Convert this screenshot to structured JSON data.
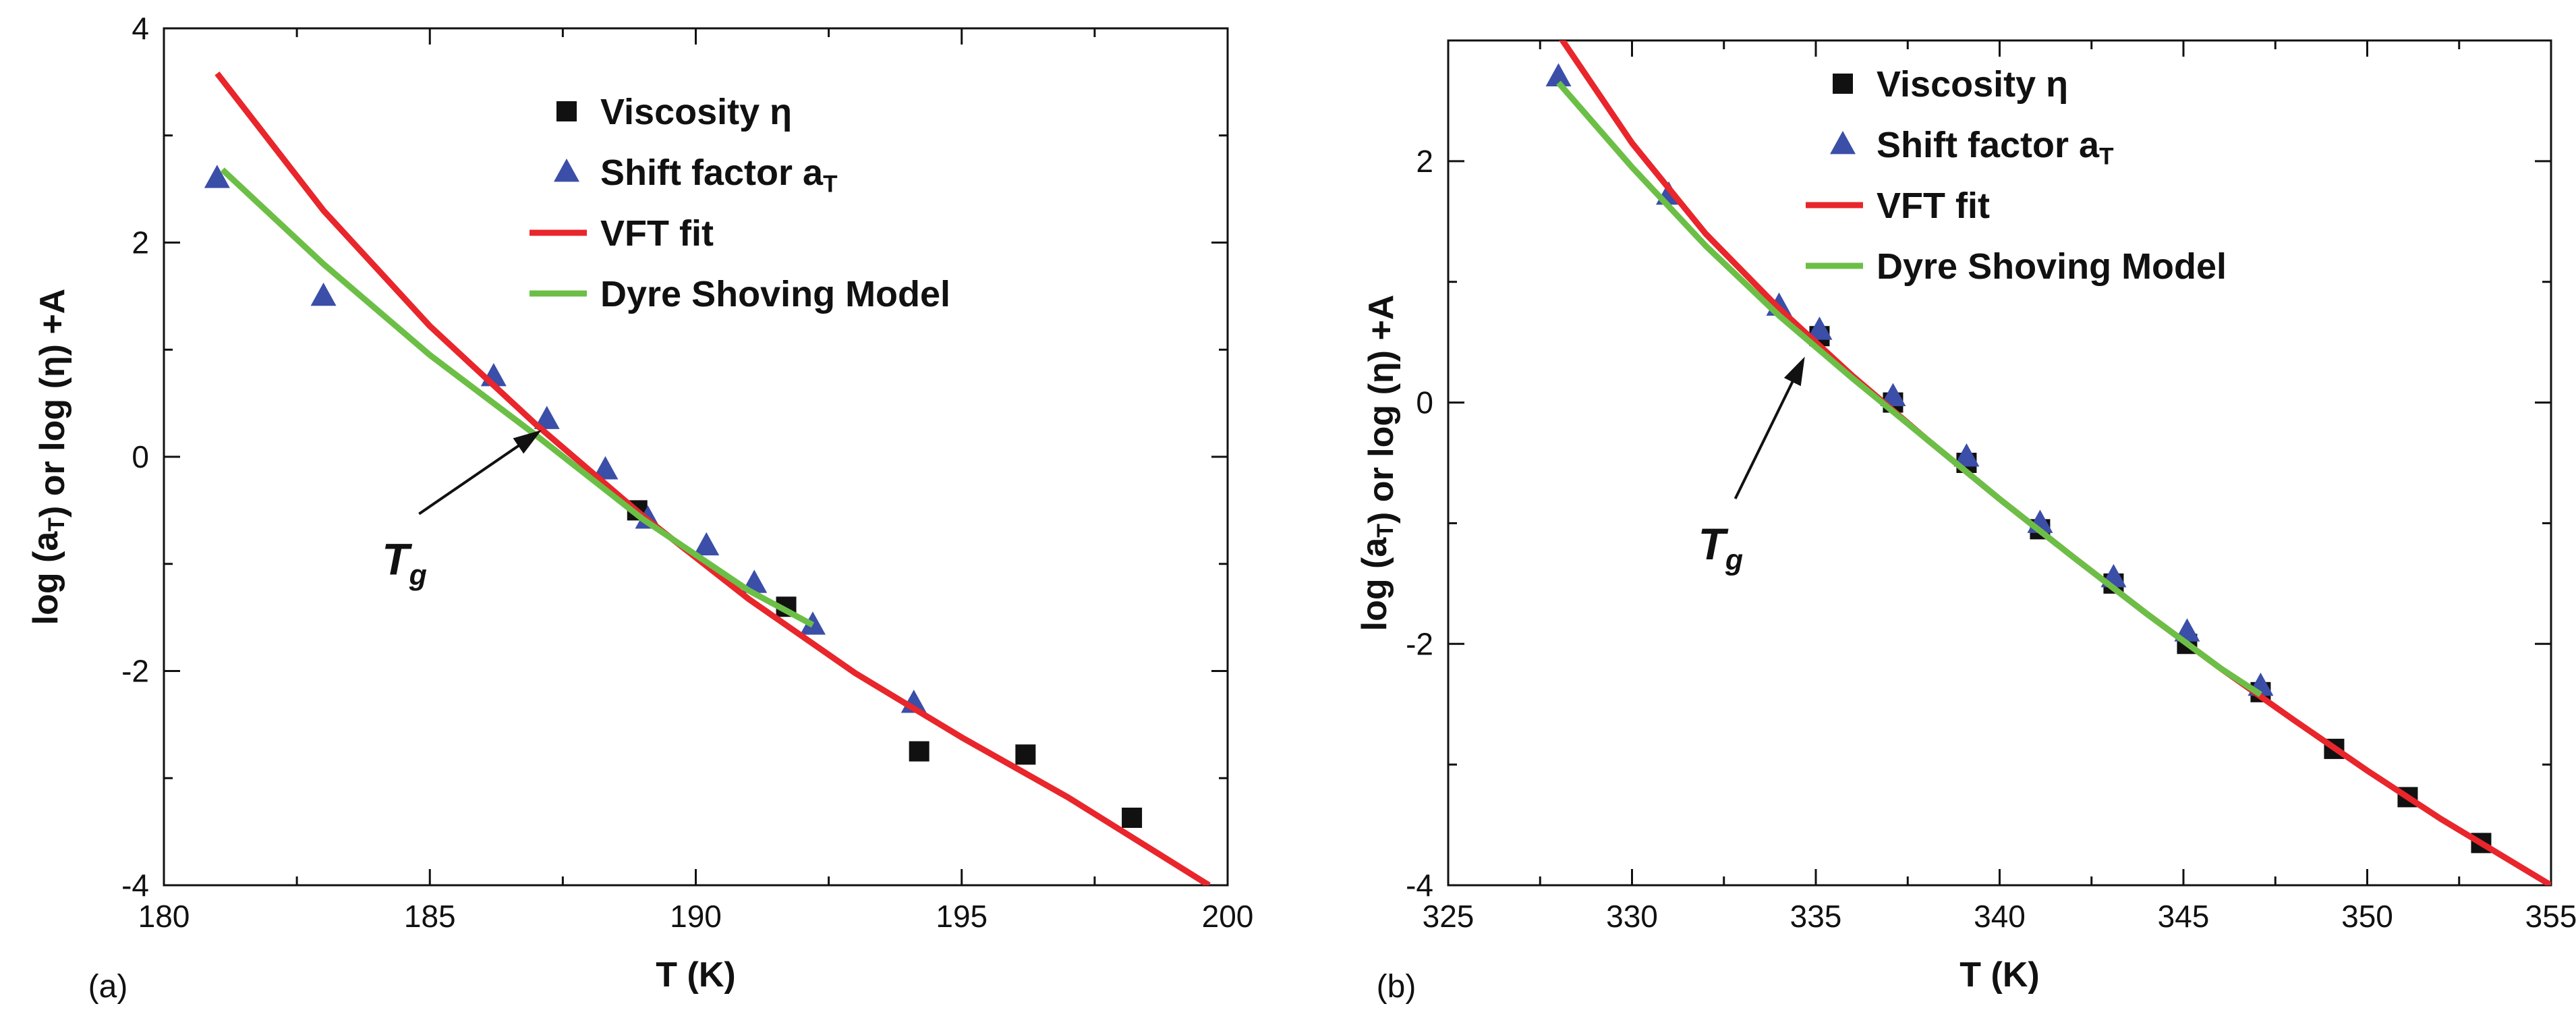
{
  "chart_data": [
    {
      "type": "scatter",
      "panel_label": "(a)",
      "xlabel": "T (K)",
      "ylabel": "log (aT) or log (η) +A",
      "xlim": [
        180,
        200
      ],
      "ylim": [
        -4,
        4
      ],
      "xticks": [
        180,
        185,
        190,
        195,
        200
      ],
      "yticks": [
        -4,
        -2,
        0,
        2,
        4
      ],
      "grid": false,
      "legend_position": "top-right",
      "annotation": {
        "text": "T",
        "subscript": "g",
        "arrow_to": [
          187.1,
          0.25
        ],
        "label_at": [
          184.1,
          -1.1
        ]
      },
      "series": [
        {
          "name": "Viscosity η",
          "marker": "square",
          "color": "#111111",
          "x": [
            188.9,
            191.7,
            194.2,
            196.2,
            198.2
          ],
          "y": [
            -0.5,
            -1.4,
            -2.75,
            -2.78,
            -3.37
          ]
        },
        {
          "name": "Shift factor aT",
          "marker": "triangle",
          "color": "#3b4ea8",
          "x": [
            181.0,
            183.0,
            186.2,
            187.2,
            188.3,
            189.1,
            190.2,
            191.1,
            192.2,
            194.1
          ],
          "y": [
            2.6,
            1.5,
            0.75,
            0.35,
            -0.12,
            -0.58,
            -0.83,
            -1.18,
            -1.57,
            -2.3
          ]
        },
        {
          "name": "VFT fit",
          "line": true,
          "color": "#e8262b",
          "x": [
            181.0,
            183.0,
            185.0,
            187.0,
            189.0,
            191.0,
            193.0,
            195.0,
            197.0,
            199.65
          ],
          "y": [
            3.58,
            2.3,
            1.22,
            0.3,
            -0.55,
            -1.33,
            -2.02,
            -2.62,
            -3.18,
            -4.0
          ]
        },
        {
          "name": "Dyre Shoving Model",
          "line": true,
          "color": "#6cbf46",
          "x": [
            181.1,
            183.0,
            185.0,
            187.0,
            189.0,
            191.0,
            192.2
          ],
          "y": [
            2.68,
            1.8,
            0.95,
            0.2,
            -0.58,
            -1.25,
            -1.57
          ]
        }
      ]
    },
    {
      "type": "scatter",
      "panel_label": "(b)",
      "xlabel": "T (K)",
      "ylabel": "log (aT) or log (η) +A",
      "xlim": [
        325,
        355
      ],
      "ylim": [
        -4,
        3
      ],
      "xticks": [
        325,
        330,
        335,
        340,
        345,
        350,
        355
      ],
      "yticks": [
        -4,
        -2,
        0,
        2
      ],
      "grid": false,
      "legend_position": "top-right",
      "annotation": {
        "text": "T",
        "subscript": "g",
        "arrow_to": [
          334.7,
          0.38
        ],
        "label_at": [
          331.8,
          -1.3
        ]
      },
      "series": [
        {
          "name": "Viscosity η",
          "marker": "square",
          "color": "#111111",
          "x": [
            335.1,
            337.1,
            339.1,
            341.1,
            343.1,
            345.1,
            347.1,
            349.1,
            351.1,
            353.1
          ],
          "y": [
            0.55,
            0.0,
            -0.5,
            -1.05,
            -1.5,
            -2.0,
            -2.4,
            -2.87,
            -3.27,
            -3.65
          ]
        },
        {
          "name": "Shift factor aT",
          "marker": "triangle",
          "color": "#3b4ea8",
          "x": [
            328.0,
            331.0,
            334.0,
            335.1,
            337.1,
            339.1,
            341.1,
            343.1,
            345.1,
            347.1
          ],
          "y": [
            2.7,
            1.72,
            0.8,
            0.6,
            0.05,
            -0.45,
            -1.0,
            -1.45,
            -1.9,
            -2.35
          ]
        },
        {
          "name": "VFT fit",
          "line": true,
          "color": "#e8262b",
          "x": [
            328.0,
            330.0,
            332.0,
            334.0,
            336.0,
            338.0,
            340.0,
            342.0,
            344.0,
            346.0,
            348.0,
            350.0,
            352.0,
            355.0
          ],
          "y": [
            3.05,
            2.15,
            1.4,
            0.78,
            0.22,
            -0.3,
            -0.8,
            -1.28,
            -1.75,
            -2.2,
            -2.63,
            -3.05,
            -3.45,
            -4.0
          ]
        },
        {
          "name": "Dyre Shoving Model",
          "line": true,
          "color": "#6cbf46",
          "x": [
            328.0,
            330.0,
            332.0,
            334.0,
            336.0,
            338.0,
            340.0,
            342.0,
            344.0,
            346.0,
            347.1
          ],
          "y": [
            2.65,
            1.95,
            1.3,
            0.72,
            0.2,
            -0.3,
            -0.8,
            -1.28,
            -1.75,
            -2.2,
            -2.42
          ]
        }
      ]
    }
  ]
}
